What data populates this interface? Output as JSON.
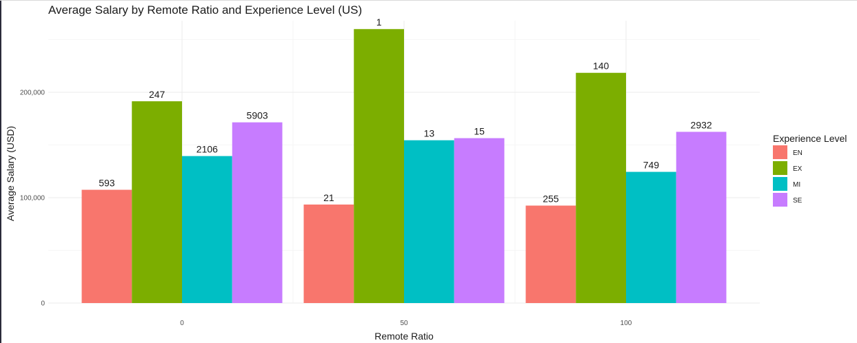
{
  "chart_data": {
    "type": "bar",
    "title": "Average Salary by Remote Ratio and Experience Level (US)",
    "xlabel": "Remote Ratio",
    "ylabel": "Average Salary (USD)",
    "categories": [
      "0",
      "50",
      "100"
    ],
    "y_tick_values": [
      0,
      100000,
      200000
    ],
    "y_tick_labels": [
      "0",
      "100,000",
      "200,000"
    ],
    "ylim": [
      0,
      268000
    ],
    "grid": true,
    "legend": {
      "title": "Experience Level",
      "placement": "right"
    },
    "series": [
      {
        "name": "EN",
        "color": "#F8766D",
        "values": [
          107500,
          93500,
          92500
        ],
        "labels": [
          "593",
          "21",
          "255"
        ]
      },
      {
        "name": "EX",
        "color": "#7CAE00",
        "values": [
          191500,
          260000,
          218500
        ],
        "labels": [
          "247",
          "1",
          "140"
        ]
      },
      {
        "name": "MI",
        "color": "#00BFC4",
        "values": [
          139500,
          154500,
          124500
        ],
        "labels": [
          "2106",
          "13",
          "749"
        ]
      },
      {
        "name": "SE",
        "color": "#C77CFF",
        "values": [
          171500,
          156500,
          162500
        ],
        "labels": [
          "5903",
          "15",
          "2932"
        ]
      }
    ]
  }
}
